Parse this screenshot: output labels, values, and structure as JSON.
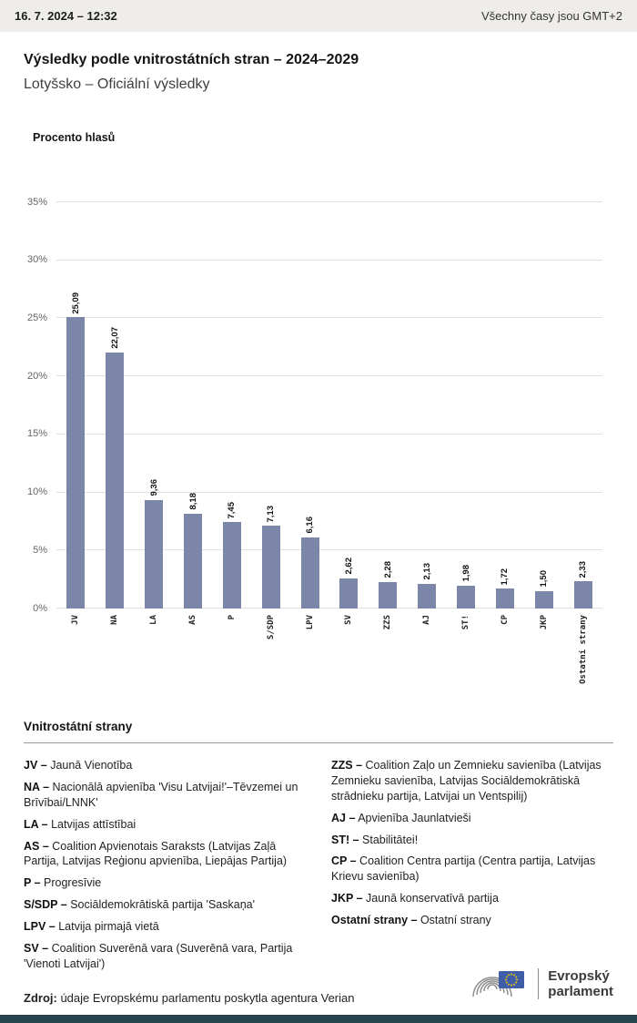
{
  "topbar": {
    "datetime": "16. 7. 2024 – 12:32",
    "timezone_note": "Všechny časy jsou GMT+2"
  },
  "header": {
    "title": "Výsledky podle vnitrostátních stran – 2024–2029",
    "subtitle": "Lotyšsko – Oficiální výsledky"
  },
  "chart_data": {
    "type": "bar",
    "title": "Procento hlasů",
    "categories": [
      "JV",
      "NA",
      "LA",
      "AS",
      "P",
      "S/SDP",
      "LPV",
      "SV",
      "ZZS",
      "AJ",
      "ST!",
      "CP",
      "JKP",
      "Ostatní strany"
    ],
    "values": [
      25.09,
      22.07,
      9.36,
      8.18,
      7.45,
      7.13,
      6.16,
      2.62,
      2.28,
      2.13,
      1.98,
      1.72,
      1.5,
      2.33
    ],
    "value_labels": [
      "25,09",
      "22,07",
      "9,36",
      "8,18",
      "7,45",
      "7,13",
      "6,16",
      "2,62",
      "2,28",
      "2,13",
      "1,98",
      "1,72",
      "1,50",
      "2,33"
    ],
    "y_ticks": [
      "0%",
      "5%",
      "10%",
      "15%",
      "20%",
      "25%",
      "30%",
      "35%"
    ],
    "ylim": [
      0,
      35
    ],
    "grid": true,
    "legend_position": "none",
    "bar_color": "#7c86a8"
  },
  "legend": {
    "title": "Vnitrostátní strany",
    "separator": "–",
    "columns": [
      {
        "items": [
          {
            "abbr": "JV",
            "name": "Jaunā Vienotība"
          },
          {
            "abbr": "NA",
            "name": "Nacionālā apvienība 'Visu Latvijai!'–Tēvzemei un Brīvībai/LNNK'"
          },
          {
            "abbr": "LA",
            "name": "Latvijas attīstībai"
          },
          {
            "abbr": "AS",
            "name": "Coalition Apvienotais Saraksts (Latvijas Zaļā Partija, Latvijas Reģionu apvienība, Liepājas Partija)"
          },
          {
            "abbr": "P",
            "name": "Progresīvie"
          },
          {
            "abbr": "S/SDP",
            "name": "Sociāldemokrātiskā partija 'Saskaņa'"
          },
          {
            "abbr": "LPV",
            "name": "Latvija pirmajā vietā"
          },
          {
            "abbr": "SV",
            "name": "Coalition Suverēnā vara (Suverēnā vara, Partija 'Vienoti Latvijai')"
          }
        ]
      },
      {
        "items": [
          {
            "abbr": "ZZS",
            "name": "Coalition Zaļo un Zemnieku savienība (Latvijas Zemnieku savienība, Latvijas Sociāldemokrātiskā strādnieku partija, Latvijai un Ventspilij)"
          },
          {
            "abbr": "AJ",
            "name": "Apvienība Jaunlatvieši"
          },
          {
            "abbr": "ST!",
            "name": "Stabilitātei!"
          },
          {
            "abbr": "CP",
            "name": "Coalition Centra partija (Centra partija, Latvijas Krievu savienība)"
          },
          {
            "abbr": "JKP",
            "name": "Jaunā konservatīvā partija"
          },
          {
            "abbr": "Ostatní strany",
            "name": "Ostatní strany"
          }
        ]
      }
    ]
  },
  "footer": {
    "source_label": "Zdroj:",
    "source_text": "údaje Evropskému parlamentu poskytla agentura Verian",
    "logo_line1": "Evropský",
    "logo_line2": "parlament"
  },
  "colors": {
    "bar": "#7c86a8",
    "topbar_bg": "#efedea",
    "bottom_strip": "#27454f",
    "eu_flag_blue": "#3f5ea7",
    "eu_star_yellow": "#f2c500",
    "gridline": "#e1e1e1"
  }
}
